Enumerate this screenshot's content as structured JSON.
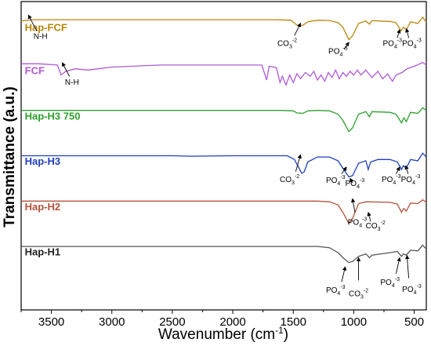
{
  "chart_data": {
    "type": "line",
    "xlabel": "Wavenumber (cm",
    "xlabel_sup": "-1",
    "xlabel_close": ")",
    "ylabel": "Transmittance (a.u.)",
    "xlim": [
      3750,
      400
    ],
    "x_reversed": true,
    "xticks": [
      "3500",
      "3000",
      "2500",
      "2000",
      "1500",
      "1000",
      "500"
    ],
    "grid": false,
    "series": [
      {
        "name": "Hap-FCF",
        "color": "#b8860b",
        "offset": 5,
        "points": [
          [
            3750,
            0.95
          ],
          [
            3650,
            1.0
          ],
          [
            3600,
            1.0
          ],
          [
            3400,
            1.0
          ],
          [
            2000,
            1.0
          ],
          [
            1650,
            1.0
          ],
          [
            1520,
            0.98
          ],
          [
            1460,
            0.75
          ],
          [
            1420,
            0.78
          ],
          [
            1380,
            0.92
          ],
          [
            1300,
            0.98
          ],
          [
            1200,
            0.97
          ],
          [
            1130,
            0.88
          ],
          [
            1090,
            0.7
          ],
          [
            1040,
            0.2
          ],
          [
            1010,
            0.35
          ],
          [
            960,
            0.85
          ],
          [
            900,
            0.95
          ],
          [
            870,
            0.82
          ],
          [
            850,
            0.96
          ],
          [
            700,
            0.93
          ],
          [
            650,
            0.88
          ],
          [
            610,
            0.55
          ],
          [
            590,
            0.7
          ],
          [
            565,
            0.6
          ],
          [
            530,
            0.92
          ],
          [
            470,
            0.85
          ],
          [
            430,
            1.1
          ],
          [
            400,
            0.9
          ]
        ]
      },
      {
        "name": "FCF",
        "color": "#b05ad6",
        "offset": 4,
        "points": [
          [
            3750,
            1.05
          ],
          [
            3600,
            1.05
          ],
          [
            3450,
            1.0
          ],
          [
            3420,
            0.6
          ],
          [
            3380,
            0.75
          ],
          [
            3300,
            0.85
          ],
          [
            3200,
            0.8
          ],
          [
            3000,
            0.92
          ],
          [
            2600,
            1.0
          ],
          [
            2000,
            1.0
          ],
          [
            1760,
            1.0
          ],
          [
            1720,
            0.4
          ],
          [
            1700,
            0.95
          ],
          [
            1640,
            0.9
          ],
          [
            1610,
            0.3
          ],
          [
            1590,
            0.55
          ],
          [
            1560,
            0.2
          ],
          [
            1530,
            0.6
          ],
          [
            1500,
            0.3
          ],
          [
            1470,
            0.65
          ],
          [
            1440,
            0.45
          ],
          [
            1400,
            0.7
          ],
          [
            1360,
            0.55
          ],
          [
            1330,
            0.75
          ],
          [
            1300,
            0.4
          ],
          [
            1270,
            0.6
          ],
          [
            1240,
            0.35
          ],
          [
            1210,
            0.7
          ],
          [
            1180,
            0.5
          ],
          [
            1150,
            0.8
          ],
          [
            1120,
            0.45
          ],
          [
            1090,
            0.7
          ],
          [
            1060,
            0.55
          ],
          [
            1030,
            0.75
          ],
          [
            1000,
            0.6
          ],
          [
            970,
            0.8
          ],
          [
            940,
            0.6
          ],
          [
            900,
            0.8
          ],
          [
            850,
            0.5
          ],
          [
            800,
            0.75
          ],
          [
            760,
            0.45
          ],
          [
            720,
            0.65
          ],
          [
            680,
            0.35
          ],
          [
            650,
            0.6
          ],
          [
            600,
            0.7
          ],
          [
            560,
            0.85
          ],
          [
            500,
            0.95
          ],
          [
            430,
            1.1
          ],
          [
            400,
            1.0
          ]
        ]
      },
      {
        "name": "Hap-H3 750",
        "color": "#2ca02c",
        "offset": 3,
        "points": [
          [
            3750,
            1.0
          ],
          [
            3000,
            1.0
          ],
          [
            2000,
            1.0
          ],
          [
            1600,
            1.0
          ],
          [
            1500,
            0.98
          ],
          [
            1470,
            0.9
          ],
          [
            1420,
            0.88
          ],
          [
            1380,
            0.98
          ],
          [
            1300,
            1.0
          ],
          [
            1200,
            0.98
          ],
          [
            1130,
            0.85
          ],
          [
            1090,
            0.6
          ],
          [
            1040,
            0.15
          ],
          [
            1010,
            0.3
          ],
          [
            960,
            0.85
          ],
          [
            900,
            0.95
          ],
          [
            870,
            0.75
          ],
          [
            850,
            0.95
          ],
          [
            700,
            0.92
          ],
          [
            650,
            0.85
          ],
          [
            605,
            0.5
          ],
          [
            585,
            0.7
          ],
          [
            565,
            0.55
          ],
          [
            530,
            0.92
          ],
          [
            470,
            0.88
          ],
          [
            430,
            1.1
          ],
          [
            400,
            1.0
          ]
        ]
      },
      {
        "name": "Hap-H3",
        "color": "#1f3fbf",
        "offset": 2,
        "points": [
          [
            3750,
            1.0
          ],
          [
            3000,
            1.0
          ],
          [
            2500,
            1.0
          ],
          [
            2350,
            0.98
          ],
          [
            2000,
            1.0
          ],
          [
            1550,
            1.0
          ],
          [
            1490,
            0.85
          ],
          [
            1430,
            0.3
          ],
          [
            1410,
            0.35
          ],
          [
            1380,
            0.75
          ],
          [
            1300,
            0.95
          ],
          [
            1200,
            0.95
          ],
          [
            1130,
            0.8
          ],
          [
            1090,
            0.5
          ],
          [
            1040,
            0.15
          ],
          [
            1010,
            0.2
          ],
          [
            960,
            0.7
          ],
          [
            900,
            0.8
          ],
          [
            880,
            0.45
          ],
          [
            860,
            0.75
          ],
          [
            800,
            0.85
          ],
          [
            700,
            0.85
          ],
          [
            640,
            0.75
          ],
          [
            605,
            0.45
          ],
          [
            590,
            0.6
          ],
          [
            565,
            0.5
          ],
          [
            530,
            0.85
          ],
          [
            470,
            0.8
          ],
          [
            430,
            1.1
          ],
          [
            400,
            0.95
          ]
        ]
      },
      {
        "name": "Hap-H2",
        "color": "#b5523b",
        "offset": 1,
        "points": [
          [
            3750,
            1.0
          ],
          [
            3000,
            1.0
          ],
          [
            2000,
            1.0
          ],
          [
            1300,
            1.0
          ],
          [
            1200,
            0.97
          ],
          [
            1130,
            0.85
          ],
          [
            1090,
            0.55
          ],
          [
            1040,
            0.1
          ],
          [
            1010,
            0.3
          ],
          [
            960,
            0.9
          ],
          [
            900,
            0.97
          ],
          [
            700,
            0.95
          ],
          [
            640,
            0.88
          ],
          [
            605,
            0.55
          ],
          [
            585,
            0.7
          ],
          [
            565,
            0.6
          ],
          [
            530,
            0.92
          ],
          [
            470,
            0.9
          ],
          [
            430,
            1.05
          ],
          [
            400,
            0.95
          ]
        ]
      },
      {
        "name": "Hap-H1",
        "color": "#555555",
        "offset": 0,
        "points": [
          [
            3750,
            1.0
          ],
          [
            3000,
            1.0
          ],
          [
            2000,
            1.0
          ],
          [
            1300,
            1.0
          ],
          [
            1200,
            0.95
          ],
          [
            1130,
            0.75
          ],
          [
            1090,
            0.55
          ],
          [
            1040,
            0.35
          ],
          [
            1010,
            0.4
          ],
          [
            960,
            0.6
          ],
          [
            900,
            0.7
          ],
          [
            870,
            0.55
          ],
          [
            850,
            0.65
          ],
          [
            700,
            0.75
          ],
          [
            640,
            0.8
          ],
          [
            605,
            0.6
          ],
          [
            590,
            0.7
          ],
          [
            565,
            0.65
          ],
          [
            530,
            0.85
          ],
          [
            470,
            0.82
          ],
          [
            430,
            1.05
          ],
          [
            400,
            0.9
          ]
        ]
      }
    ],
    "labels": [
      {
        "name": "Hap-FCF",
        "color": "#b8860b",
        "x": 3720,
        "y": 5.55
      },
      {
        "name": "FCF",
        "color": "#b05ad6",
        "x": 3720,
        "y": 4.6
      },
      {
        "name": "Hap-H3 750",
        "color": "#2ca02c",
        "x": 3720,
        "y": 3.6
      },
      {
        "name": "Hap-H3",
        "color": "#1f3fbf",
        "x": 3720,
        "y": 2.6
      },
      {
        "name": "Hap-H2",
        "color": "#b5523b",
        "x": 3720,
        "y": 1.6
      },
      {
        "name": "Hap-H1",
        "color": "#222222",
        "x": 3720,
        "y": 0.6
      }
    ],
    "annotations": [
      {
        "base": "N-H",
        "sup": "",
        "tx": 3590,
        "ty": 5.38,
        "ax": 3690,
        "ay": 5.9,
        "bx": 3620,
        "by": 5.55
      },
      {
        "base": "N-H",
        "sup": "",
        "tx": 3330,
        "ty": 4.37,
        "ax": 3410,
        "ay": 4.85,
        "bx": 3350,
        "by": 4.55
      },
      {
        "base": "CO",
        "sub": "3",
        "sup": "-2",
        "tx": 1550,
        "ty": 5.22,
        "ax": 1440,
        "ay": 5.72,
        "bx": 1490,
        "by": 5.45
      },
      {
        "base": "PO",
        "sub": "4",
        "sup": "-3",
        "tx": 1130,
        "ty": 5.05,
        "ax": 1040,
        "ay": 5.3,
        "bx": 1080,
        "by": 5.15
      },
      {
        "base": "PO",
        "sub": "4",
        "sup": "-3",
        "tx": 680,
        "ty": 5.22,
        "ax": 620,
        "ay": 5.58,
        "bx": 640,
        "by": 5.4
      },
      {
        "base": "PO",
        "sub": "4",
        "sup": "-3",
        "tx": 520,
        "ty": 5.22,
        "ax": 565,
        "ay": 5.6,
        "bx": 545,
        "by": 5.4
      },
      {
        "base": "CO",
        "sub": "3",
        "sup": "-2",
        "tx": 1530,
        "ty": 2.22,
        "ax": 1440,
        "ay": 2.82,
        "bx": 1480,
        "by": 2.45
      },
      {
        "base": "PO",
        "sub": "4",
        "sup": "-3",
        "tx": 1150,
        "ty": 2.2,
        "ax": 1060,
        "ay": 2.55,
        "bx": 1100,
        "by": 2.4
      },
      {
        "base": "PO",
        "sub": "4",
        "sup": "-3",
        "tx": 990,
        "ty": 2.13,
        "ax": 1030,
        "ay": 2.3,
        "bx": 1010,
        "by": 2.2
      },
      {
        "base": "PO",
        "sub": "4",
        "sup": "-3",
        "tx": 690,
        "ty": 2.22,
        "ax": 620,
        "ay": 2.55,
        "bx": 650,
        "by": 2.4
      },
      {
        "base": "PO",
        "sub": "4",
        "sup": "-3",
        "tx": 530,
        "ty": 2.22,
        "ax": 570,
        "ay": 2.58,
        "bx": 550,
        "by": 2.4
      },
      {
        "base": "PO",
        "sub": "4",
        "sup": "-3",
        "tx": 970,
        "ty": 1.28,
        "ax": 1010,
        "ay": 1.85,
        "bx": 990,
        "by": 1.55
      },
      {
        "base": "CO",
        "sub": "3",
        "sup": "-2",
        "tx": 820,
        "ty": 1.2,
        "ax": 880,
        "ay": 1.55,
        "bx": 860,
        "by": 1.35
      },
      {
        "base": "PO",
        "sub": "4",
        "sup": "-3",
        "tx": 1150,
        "ty": -0.22,
        "ax": 1070,
        "ay": 0.35,
        "bx": 1100,
        "by": 0.02
      },
      {
        "base": "CO",
        "sub": "3",
        "sup": "-2",
        "tx": 960,
        "ty": -0.3,
        "ax": 960,
        "ay": 0.55,
        "bx": 960,
        "by": 0.05
      },
      {
        "base": "PO",
        "sub": "4",
        "sup": "-3",
        "tx": 700,
        "ty": -0.05,
        "ax": 620,
        "ay": 0.55,
        "bx": 650,
        "by": 0.2
      },
      {
        "base": "PO",
        "sub": "4",
        "sup": "-3",
        "tx": 520,
        "ty": -0.2,
        "ax": 560,
        "ay": 0.6,
        "bx": 545,
        "by": 0.1
      }
    ]
  }
}
